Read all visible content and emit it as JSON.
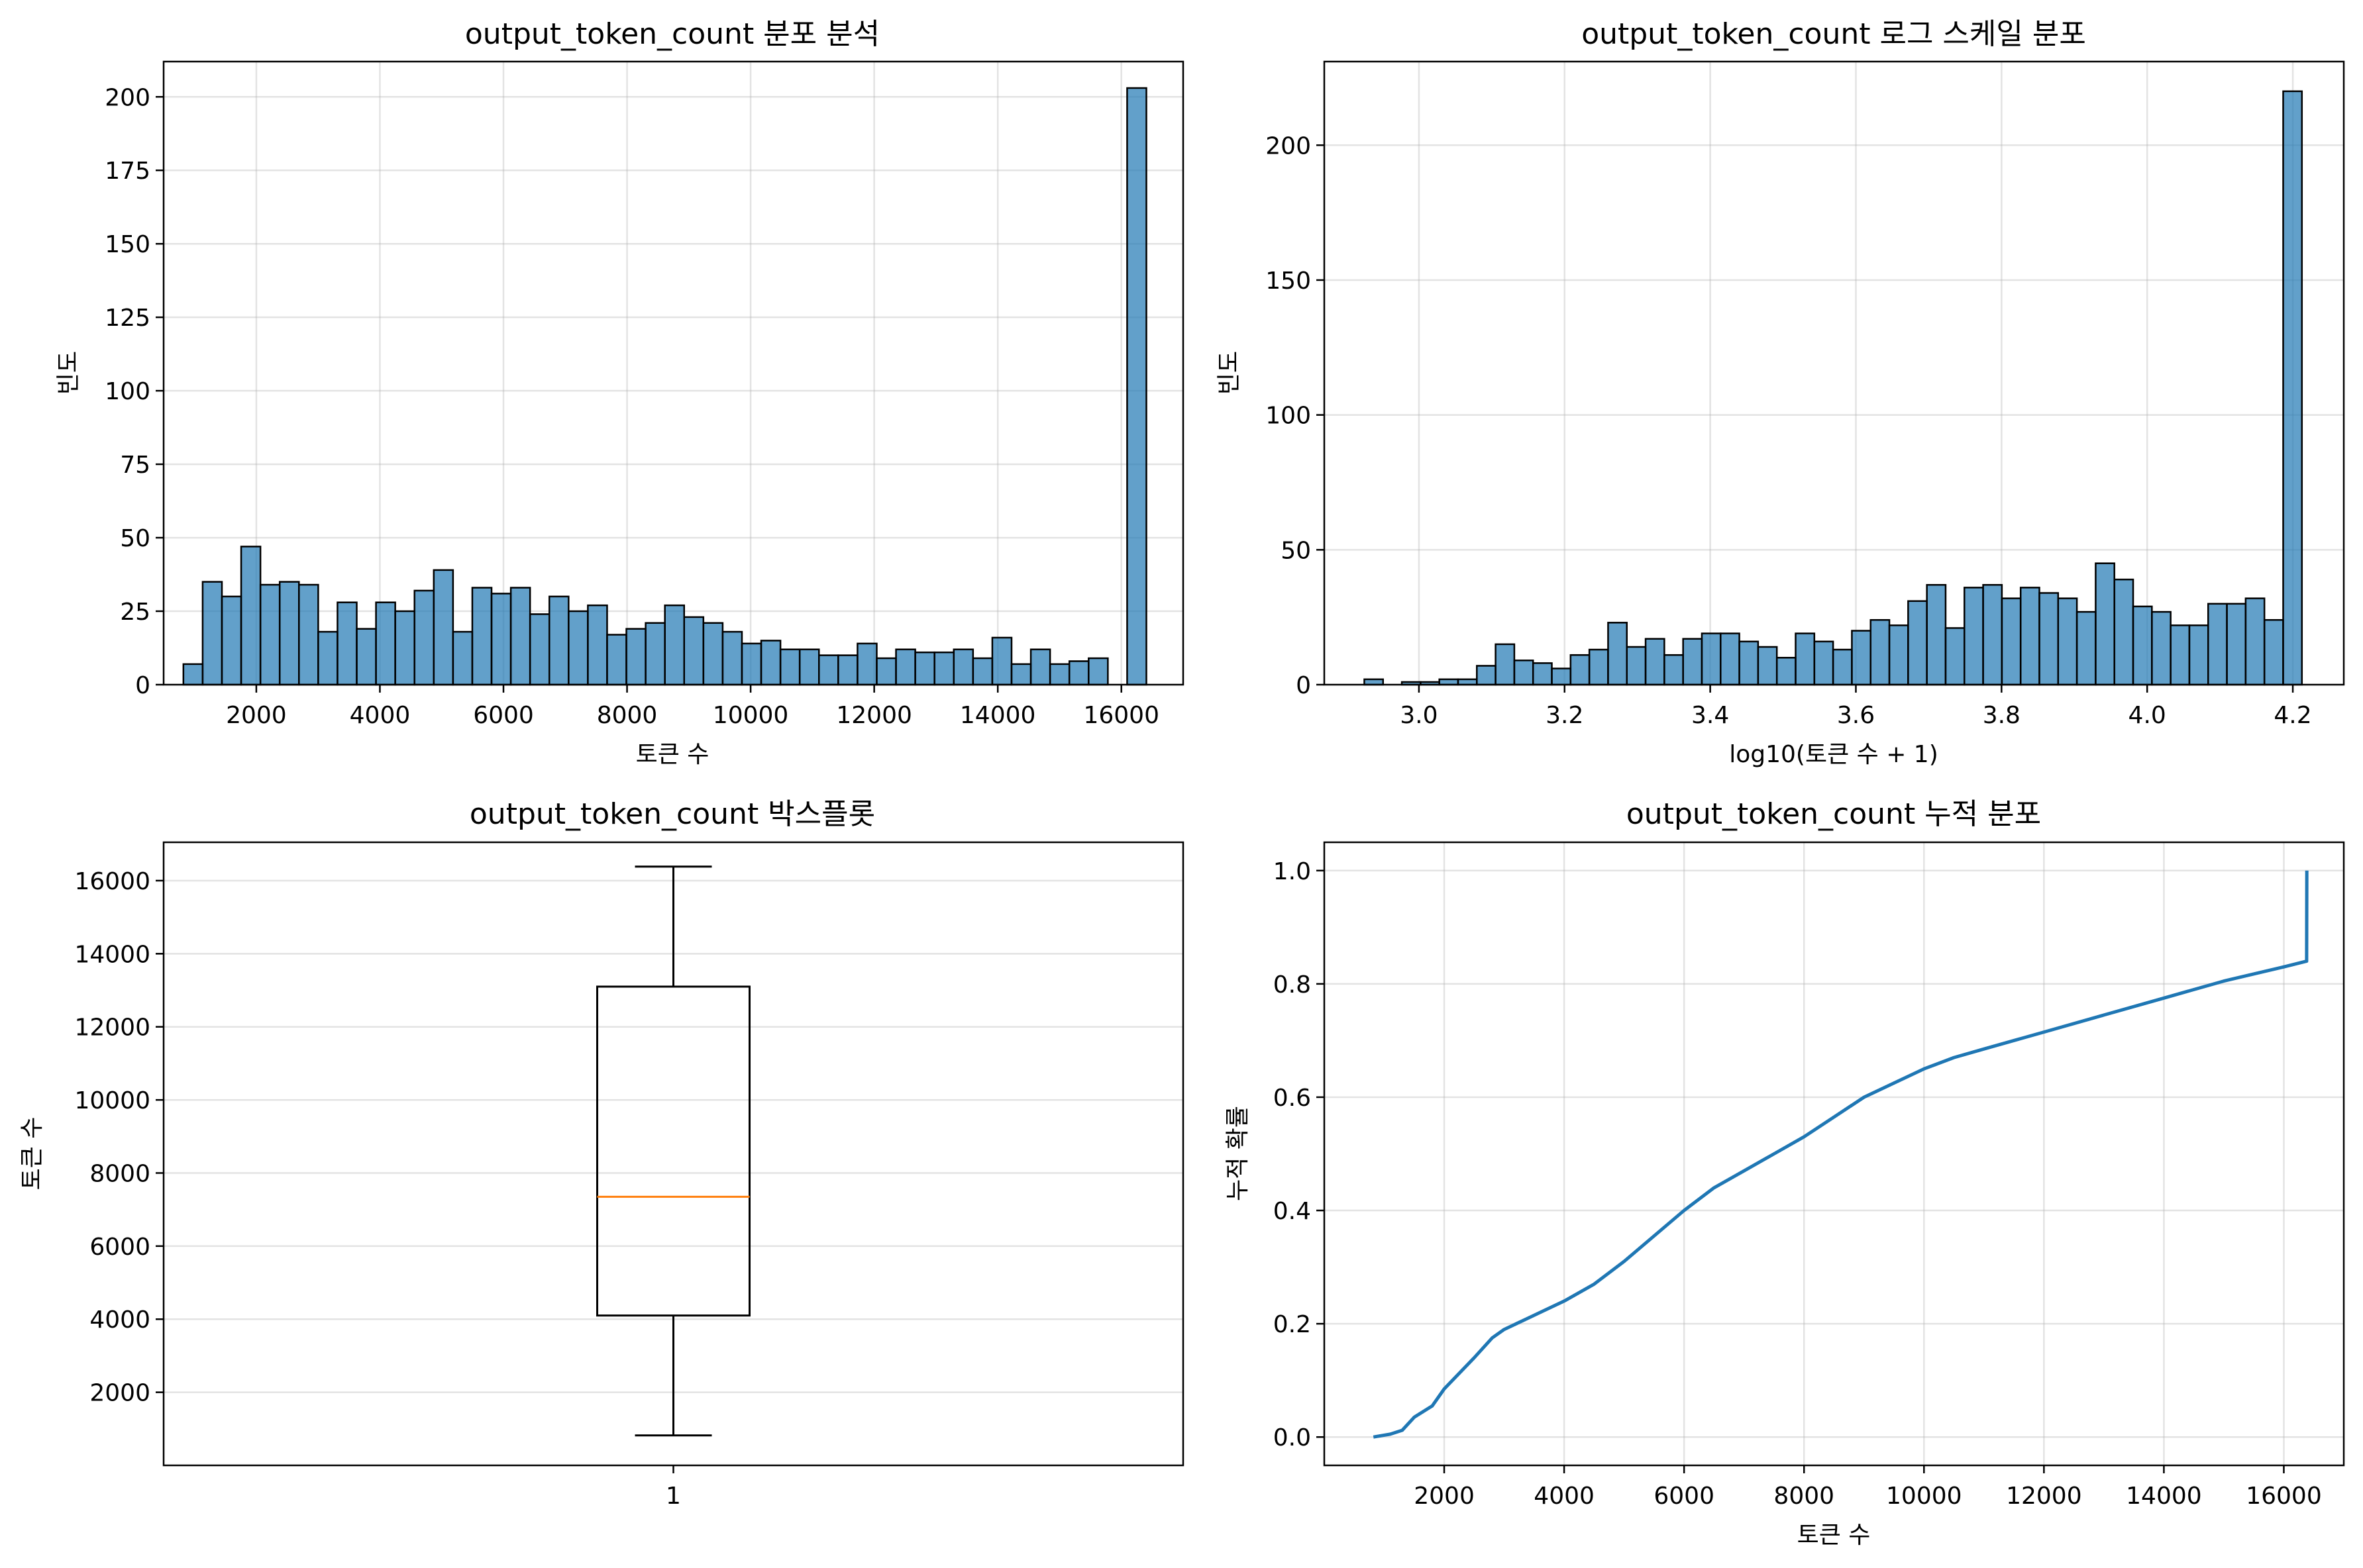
{
  "colors": {
    "bar": "#1f77b4",
    "line": "#1f77b4",
    "median": "#ff7f0e",
    "grid": "#b0b0b0"
  },
  "chart_data": [
    {
      "id": "hist",
      "type": "bar",
      "title": "output_token_count 분포 분석",
      "xlabel": "토큰 수",
      "ylabel": "빈도",
      "xlim": [
        500,
        17000
      ],
      "ylim": [
        0,
        212
      ],
      "xticks": [
        2000,
        4000,
        6000,
        8000,
        10000,
        12000,
        14000,
        16000
      ],
      "yticks": [
        0,
        25,
        50,
        75,
        100,
        125,
        150,
        175,
        200
      ],
      "grid": true,
      "bin_start": 820,
      "bin_width": 311.7,
      "values": [
        7,
        35,
        30,
        47,
        34,
        35,
        34,
        18,
        28,
        19,
        28,
        25,
        32,
        39,
        18,
        33,
        31,
        33,
        24,
        30,
        25,
        27,
        17,
        19,
        21,
        27,
        23,
        21,
        18,
        14,
        15,
        12,
        12,
        10,
        10,
        14,
        9,
        12,
        11,
        11,
        12,
        9,
        16,
        7,
        12,
        7,
        8,
        9,
        0,
        203
      ]
    },
    {
      "id": "loghist",
      "type": "bar",
      "title": "output_token_count 로그 스케일 분포",
      "xlabel": "log10(토큰 수 + 1)",
      "ylabel": "빈도",
      "xlim": [
        2.87,
        4.27
      ],
      "ylim": [
        0,
        231
      ],
      "xticks": [
        3.0,
        3.2,
        3.4,
        3.6,
        3.8,
        4.0,
        4.2
      ],
      "xtick_labels": [
        "3.0",
        "3.2",
        "3.4",
        "3.6",
        "3.8",
        "4.0",
        "4.2"
      ],
      "yticks": [
        0,
        50,
        100,
        150,
        200
      ],
      "grid": true,
      "bin_start": 2.925,
      "bin_width": 0.02575,
      "values": [
        2,
        0,
        1,
        1,
        2,
        2,
        7,
        15,
        9,
        8,
        6,
        11,
        13,
        23,
        14,
        17,
        11,
        17,
        19,
        19,
        16,
        14,
        10,
        19,
        16,
        13,
        20,
        24,
        22,
        31,
        37,
        21,
        36,
        37,
        32,
        36,
        34,
        32,
        27,
        45,
        39,
        29,
        27,
        22,
        22,
        30,
        30,
        32,
        24,
        220
      ]
    },
    {
      "id": "box",
      "type": "box",
      "title": "output_token_count 박스플롯",
      "ylabel": "토큰 수",
      "xtick_labels": [
        "1"
      ],
      "ylim": [
        0,
        17050
      ],
      "yticks": [
        2000,
        4000,
        6000,
        8000,
        10000,
        12000,
        14000,
        16000
      ],
      "grid": true,
      "whisker_low": 820,
      "q1": 4100,
      "median": 7350,
      "q3": 13100,
      "whisker_high": 16384
    },
    {
      "id": "cdf",
      "type": "line",
      "title": "output_token_count 누적 분포",
      "xlabel": "토큰 수",
      "ylabel": "누적 확률",
      "xlim": [
        0,
        17000
      ],
      "ylim": [
        -0.05,
        1.05
      ],
      "xticks": [
        2000,
        4000,
        6000,
        8000,
        10000,
        12000,
        14000,
        16000
      ],
      "yticks": [
        0.0,
        0.2,
        0.4,
        0.6,
        0.8,
        1.0
      ],
      "ytick_labels": [
        "0.0",
        "0.2",
        "0.4",
        "0.6",
        "0.8",
        "1.0"
      ],
      "grid": true,
      "x": [
        820,
        1100,
        1300,
        1500,
        1800,
        2000,
        2500,
        2800,
        3000,
        3400,
        3600,
        4000,
        4500,
        5000,
        5500,
        6000,
        6500,
        7000,
        7500,
        8000,
        8500,
        9000,
        9500,
        10000,
        10500,
        11000,
        12000,
        13000,
        14000,
        15000,
        16000,
        16380,
        16384
      ],
      "y": [
        0.0,
        0.005,
        0.012,
        0.035,
        0.055,
        0.085,
        0.14,
        0.175,
        0.19,
        0.21,
        0.22,
        0.24,
        0.27,
        0.31,
        0.355,
        0.4,
        0.44,
        0.47,
        0.5,
        0.53,
        0.565,
        0.6,
        0.625,
        0.65,
        0.67,
        0.685,
        0.715,
        0.745,
        0.775,
        0.805,
        0.83,
        0.84,
        1.0
      ]
    }
  ]
}
